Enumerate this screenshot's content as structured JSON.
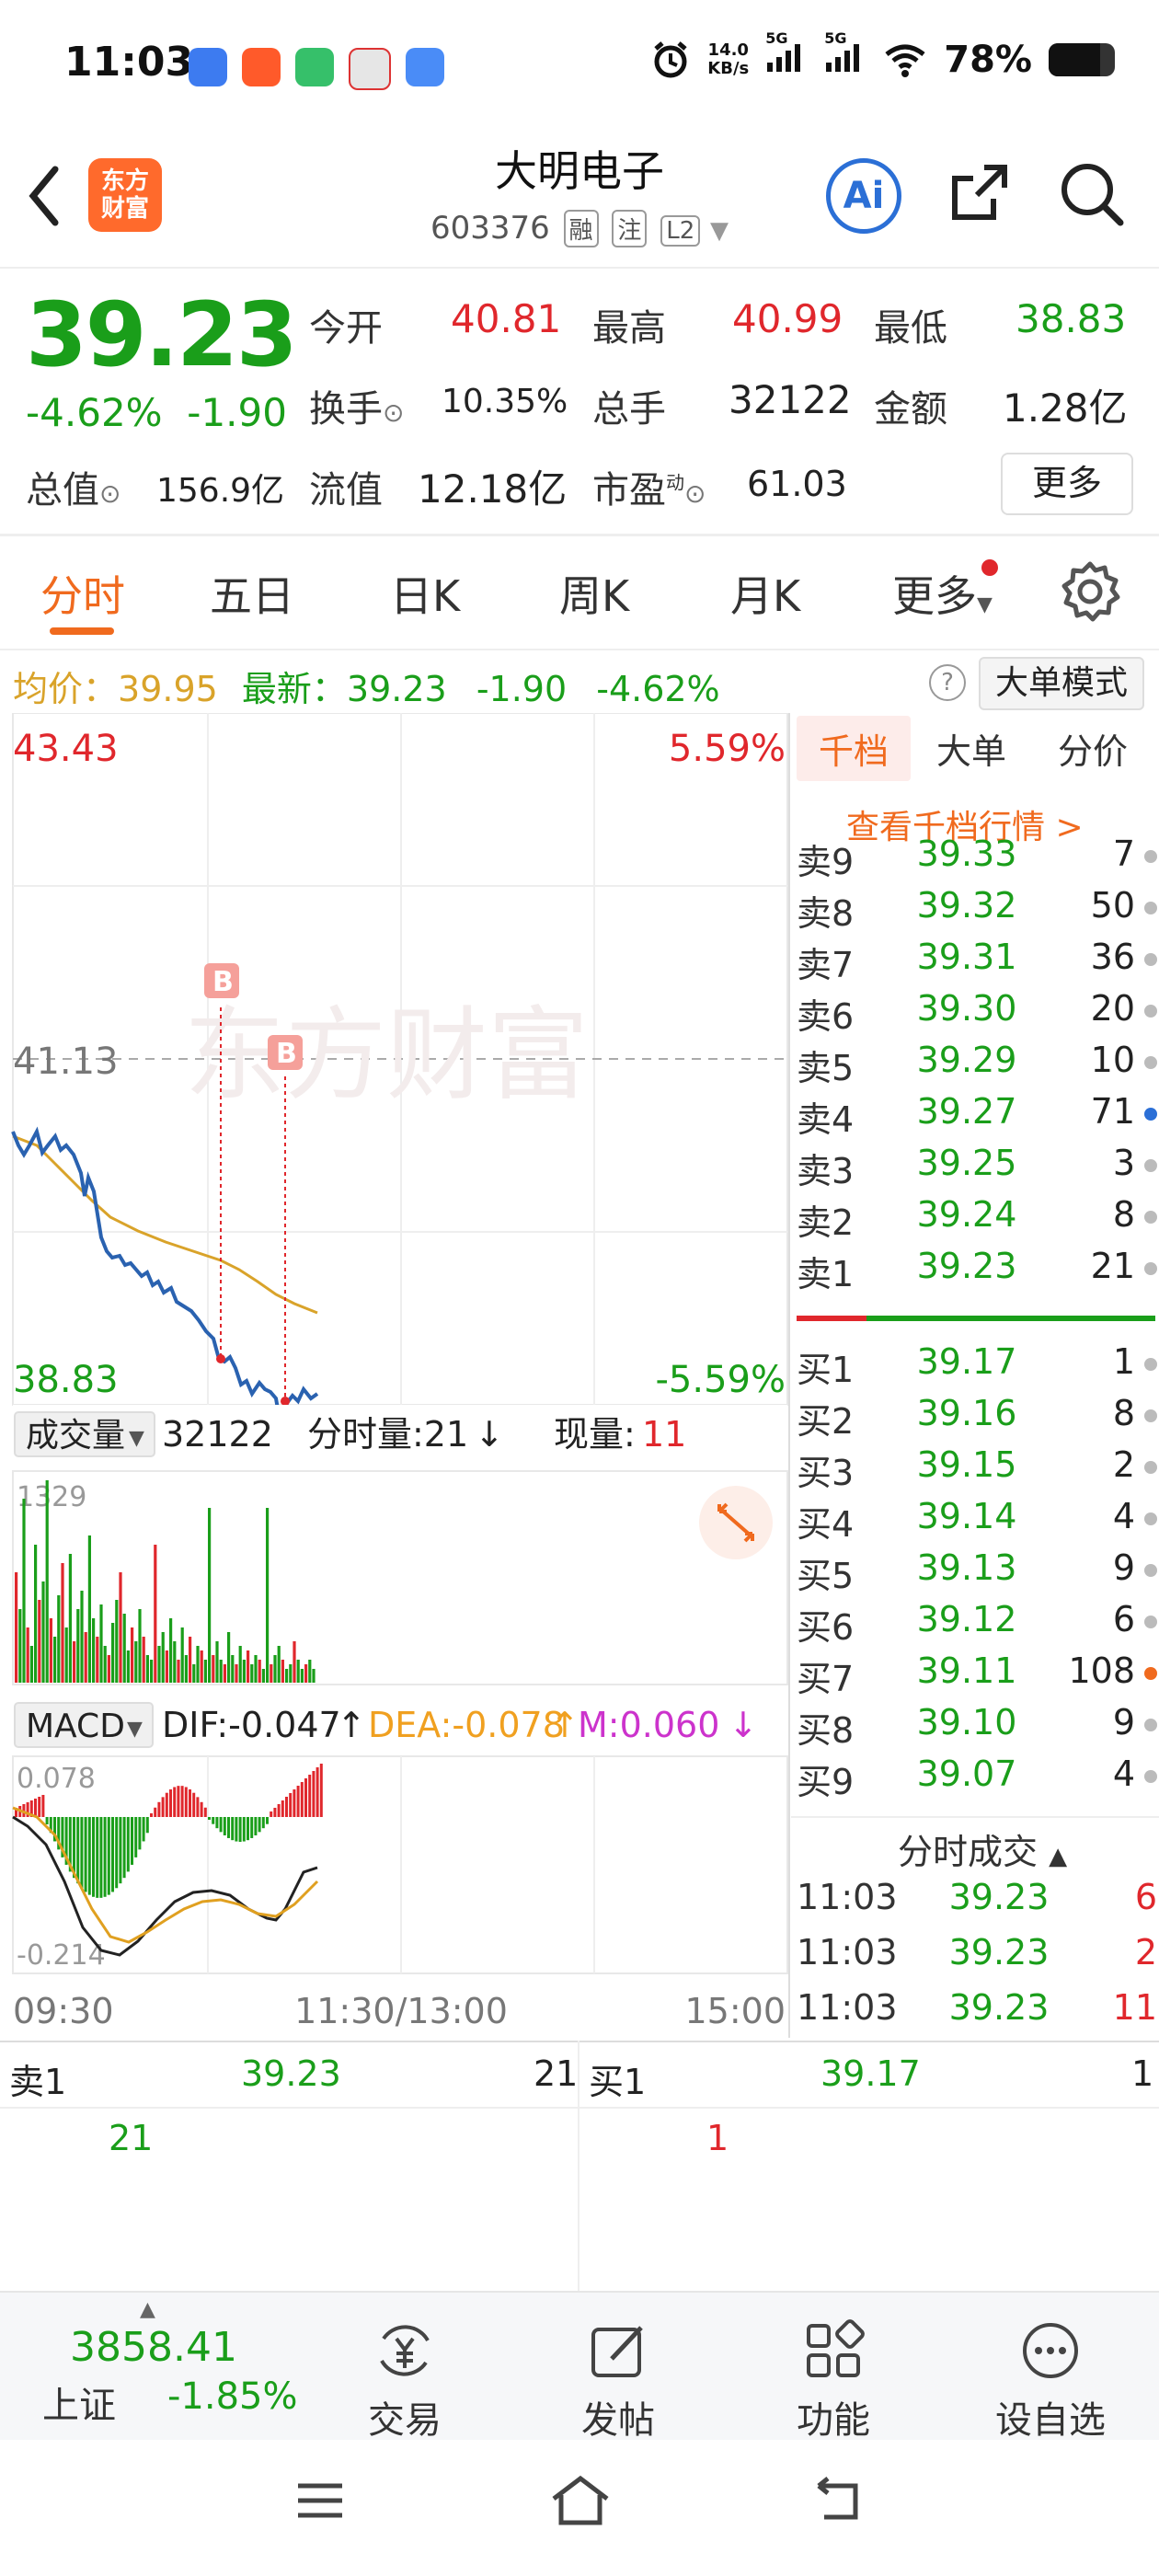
{
  "status_bar": {
    "time": "11:03",
    "net_speed_value": "14.0",
    "net_speed_unit": "KB/s",
    "signal1": "5G",
    "signal2": "5G",
    "battery": "78%"
  },
  "header": {
    "logo_text_line1": "东方",
    "logo_text_line2": "财富",
    "stock_name": "大明电子",
    "stock_code": "603376",
    "tags": [
      "融",
      "注",
      "L2"
    ],
    "ai_label": "Ai"
  },
  "quote": {
    "price": "39.23",
    "change_pct": "-4.62%",
    "change_abs": "-1.90",
    "open_label": "今开",
    "open": "40.81",
    "high_label": "最高",
    "high": "40.99",
    "low_label": "最低",
    "low": "38.83",
    "turnover_label": "换手",
    "turnover": "10.35%",
    "volume_label": "总手",
    "volume": "32122",
    "amount_label": "金额",
    "amount": "1.28亿",
    "mktcap_label": "总值",
    "mktcap": "156.9亿",
    "float_label": "流值",
    "float": "12.18亿",
    "pe_label": "市盈",
    "pe_sup": "动",
    "pe": "61.03",
    "more_label": "更多"
  },
  "tabs": [
    "分时",
    "五日",
    "日K",
    "周K",
    "月K",
    "更多"
  ],
  "avg_line": {
    "avg_label": "均价：",
    "avg": "39.95",
    "latest_label": "最新：",
    "latest": "39.23",
    "chg": "-1.90",
    "pct": "-4.62%",
    "help": "?",
    "big_mode": "大单模式"
  },
  "chart_labels": {
    "top_price": "43.43",
    "top_pct": "5.59%",
    "mid_price": "41.13",
    "bottom_price": "38.83",
    "bottom_pct": "-5.59%",
    "watermark": "东方财富",
    "marker": "B",
    "vol_label": "成交量",
    "vol_total": "32122",
    "vol_minute_label": "分时量:21",
    "vol_minute_arrow": "↓",
    "vol_now_label": "现量:",
    "vol_now": "11",
    "vol_max": "1329",
    "macd_label": "MACD",
    "dif": "DIF:-0.047",
    "dif_arrow": "↑",
    "dea": "DEA:-0.078",
    "dea_arrow": "↑",
    "m": "M:0.060",
    "m_arrow": "↓",
    "macd_top": "0.078",
    "macd_bottom": "-0.214",
    "time_start": "09:30",
    "time_mid": "11:30/13:00",
    "time_end": "15:00"
  },
  "orderbook": {
    "tabs": [
      "千档",
      "大单",
      "分价"
    ],
    "link": "查看千档行情 >",
    "asks": [
      {
        "label": "卖9",
        "price": "39.33",
        "vol": "7",
        "dot": "#bbbbbb"
      },
      {
        "label": "卖8",
        "price": "39.32",
        "vol": "50",
        "dot": "#bbbbbb"
      },
      {
        "label": "卖7",
        "price": "39.31",
        "vol": "36",
        "dot": "#bbbbbb"
      },
      {
        "label": "卖6",
        "price": "39.30",
        "vol": "20",
        "dot": "#bbbbbb"
      },
      {
        "label": "卖5",
        "price": "39.29",
        "vol": "10",
        "dot": "#bbbbbb"
      },
      {
        "label": "卖4",
        "price": "39.27",
        "vol": "71",
        "dot": "#2b6fd6"
      },
      {
        "label": "卖3",
        "price": "39.25",
        "vol": "3",
        "dot": "#bbbbbb"
      },
      {
        "label": "卖2",
        "price": "39.24",
        "vol": "8",
        "dot": "#bbbbbb"
      },
      {
        "label": "卖1",
        "price": "39.23",
        "vol": "21",
        "dot": "#bbbbbb"
      }
    ],
    "bids": [
      {
        "label": "买1",
        "price": "39.17",
        "vol": "1",
        "dot": "#bbbbbb"
      },
      {
        "label": "买2",
        "price": "39.16",
        "vol": "8",
        "dot": "#bbbbbb"
      },
      {
        "label": "买3",
        "price": "39.15",
        "vol": "2",
        "dot": "#bbbbbb"
      },
      {
        "label": "买4",
        "price": "39.14",
        "vol": "4",
        "dot": "#bbbbbb"
      },
      {
        "label": "买5",
        "price": "39.13",
        "vol": "9",
        "dot": "#bbbbbb"
      },
      {
        "label": "买6",
        "price": "39.12",
        "vol": "6",
        "dot": "#bbbbbb"
      },
      {
        "label": "买7",
        "price": "39.11",
        "vol": "108",
        "dot": "#f06a1e"
      },
      {
        "label": "买8",
        "price": "39.10",
        "vol": "9",
        "dot": "#bbbbbb"
      },
      {
        "label": "买9",
        "price": "39.07",
        "vol": "4",
        "dot": "#bbbbbb"
      }
    ],
    "ticks_title": "分时成交",
    "ticks": [
      {
        "time": "11:03",
        "price": "39.23",
        "vol": "6"
      },
      {
        "time": "11:03",
        "price": "39.23",
        "vol": "2"
      },
      {
        "time": "11:03",
        "price": "39.23",
        "vol": "11"
      }
    ]
  },
  "bottom_detail": {
    "ask_label": "卖1",
    "ask_price": "39.23",
    "ask_vol": "21",
    "ask_queue": "21",
    "bid_label": "买1",
    "bid_price": "39.17",
    "bid_vol": "1",
    "bid_queue": "1"
  },
  "bottom_nav": {
    "index_value": "3858.41",
    "index_name": "上证",
    "index_pct": "-1.85%",
    "items": [
      "交易",
      "发帖",
      "功能",
      "设自选"
    ]
  },
  "colors": {
    "up": "#e0272c",
    "down": "#1a9e1a",
    "accent": "#f06a1e",
    "price_line": "#2a62b0",
    "avg_line": "#d9a32a"
  }
}
